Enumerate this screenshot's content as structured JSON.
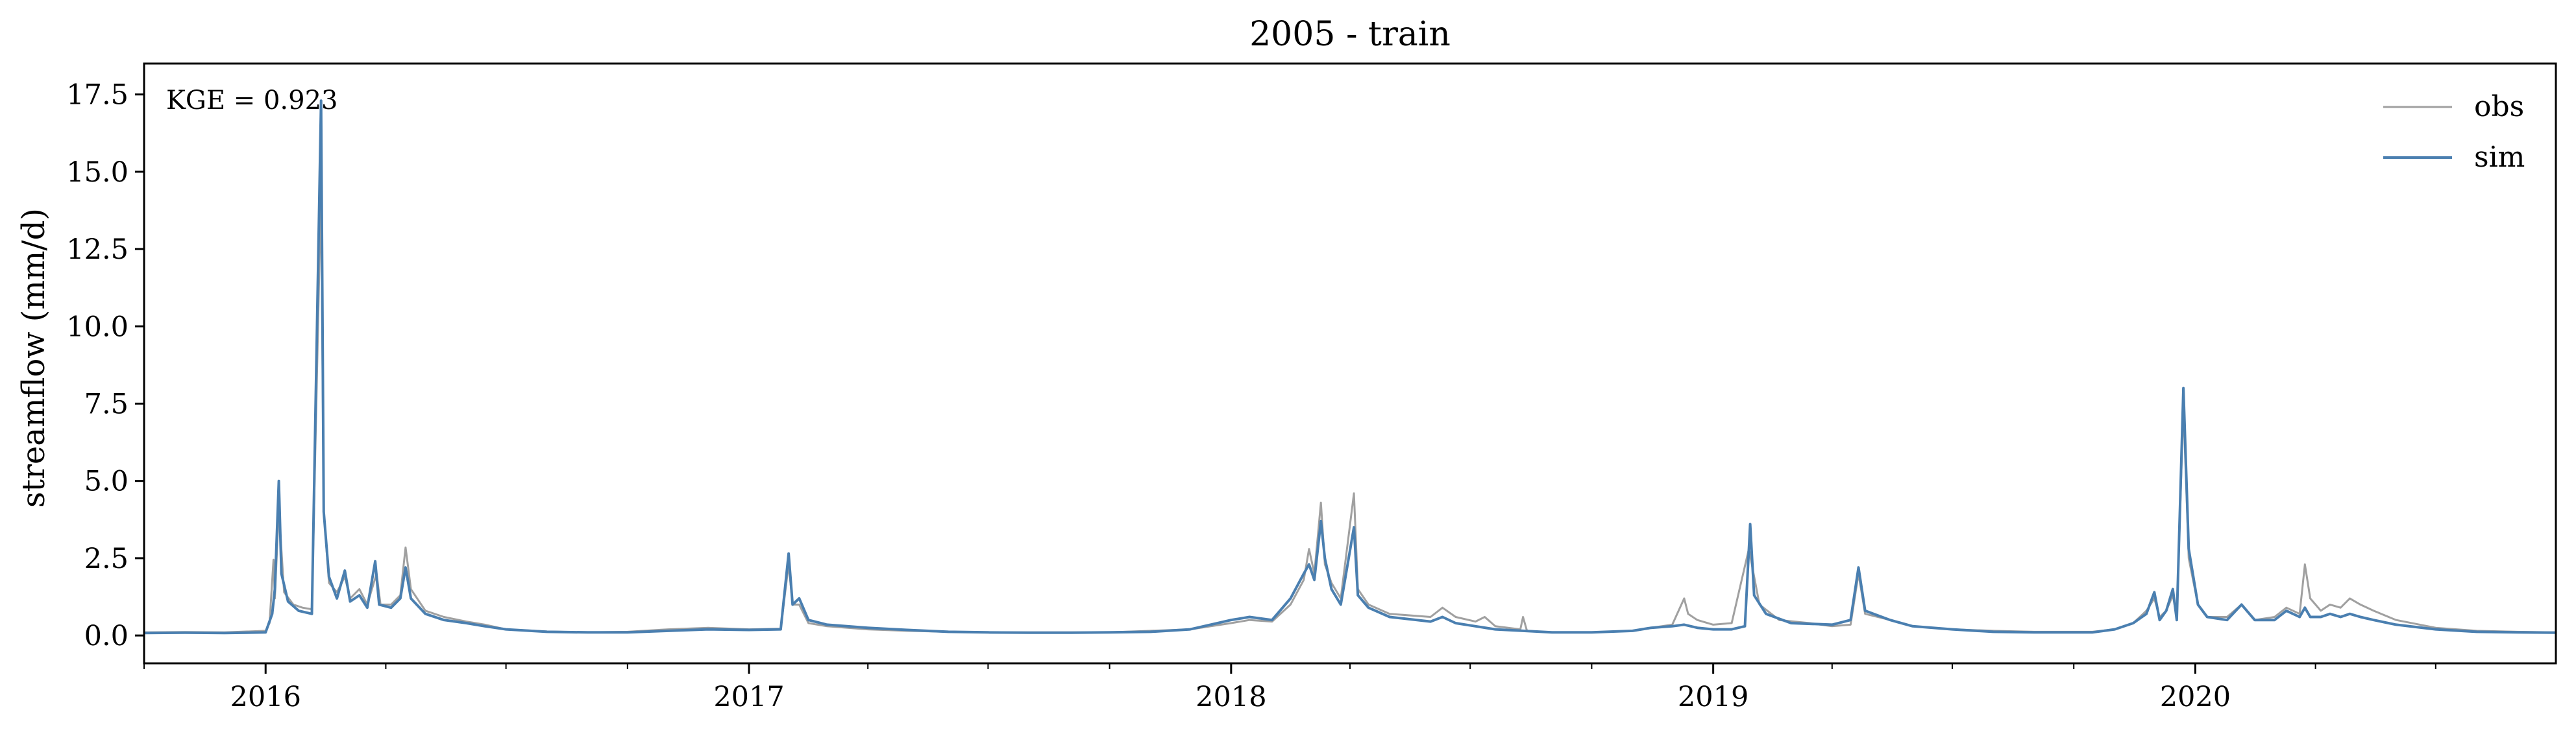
{
  "chart_data": {
    "type": "line",
    "title": "2005 - train",
    "ylabel": "streamflow (mm/d)",
    "xlabel": "",
    "xlim": [
      "2015-10-01",
      "2020-09-30"
    ],
    "ylim": [
      -0.9,
      18.5
    ],
    "yticks": [
      "0.0",
      "2.5",
      "5.0",
      "7.5",
      "10.0",
      "12.5",
      "15.0",
      "17.5"
    ],
    "xticks": [
      "2016",
      "2017",
      "2018",
      "2019",
      "2020"
    ],
    "grid": false,
    "legend": "top-right",
    "annotation": "KGE = 0.923",
    "series": [
      {
        "name": "obs",
        "color": "#a0a0a0",
        "points": [
          [
            "2015-10-01",
            0.1
          ],
          [
            "2015-11-01",
            0.11
          ],
          [
            "2015-12-01",
            0.1
          ],
          [
            "2016-01-01",
            0.15
          ],
          [
            "2016-01-04",
            0.4
          ],
          [
            "2016-01-07",
            2.45
          ],
          [
            "2016-01-08",
            1.2
          ],
          [
            "2016-01-11",
            4.1
          ],
          [
            "2016-01-15",
            1.4
          ],
          [
            "2016-01-22",
            1.0
          ],
          [
            "2016-01-29",
            0.9
          ],
          [
            "2016-02-05",
            0.85
          ],
          [
            "2016-02-12",
            14.5
          ],
          [
            "2016-02-14",
            4.0
          ],
          [
            "2016-02-18",
            1.7
          ],
          [
            "2016-02-24",
            1.4
          ],
          [
            "2016-03-01",
            1.9
          ],
          [
            "2016-03-05",
            1.2
          ],
          [
            "2016-03-12",
            1.5
          ],
          [
            "2016-03-18",
            1.0
          ],
          [
            "2016-03-25",
            2.0
          ],
          [
            "2016-03-28",
            1.0
          ],
          [
            "2016-04-05",
            1.0
          ],
          [
            "2016-04-12",
            1.3
          ],
          [
            "2016-04-16",
            2.85
          ],
          [
            "2016-04-20",
            1.5
          ],
          [
            "2016-05-01",
            0.8
          ],
          [
            "2016-05-15",
            0.6
          ],
          [
            "2016-06-01",
            0.45
          ],
          [
            "2016-06-15",
            0.35
          ],
          [
            "2016-07-01",
            0.2
          ],
          [
            "2016-08-01",
            0.13
          ],
          [
            "2016-09-01",
            0.1
          ],
          [
            "2016-10-01",
            0.12
          ],
          [
            "2016-11-01",
            0.2
          ],
          [
            "2016-12-01",
            0.25
          ],
          [
            "2017-01-01",
            0.2
          ],
          [
            "2017-01-25",
            0.22
          ],
          [
            "2017-01-31",
            2.3
          ],
          [
            "2017-02-03",
            1.0
          ],
          [
            "2017-02-08",
            1.0
          ],
          [
            "2017-02-15",
            0.4
          ],
          [
            "2017-03-01",
            0.3
          ],
          [
            "2017-04-01",
            0.2
          ],
          [
            "2017-05-01",
            0.15
          ],
          [
            "2017-06-01",
            0.12
          ],
          [
            "2017-07-01",
            0.1
          ],
          [
            "2017-08-01",
            0.1
          ],
          [
            "2017-09-01",
            0.1
          ],
          [
            "2017-10-01",
            0.1
          ],
          [
            "2017-11-01",
            0.15
          ],
          [
            "2017-12-01",
            0.2
          ],
          [
            "2018-01-01",
            0.4
          ],
          [
            "2018-01-15",
            0.5
          ],
          [
            "2018-02-01",
            0.45
          ],
          [
            "2018-02-15",
            1.0
          ],
          [
            "2018-02-25",
            1.8
          ],
          [
            "2018-03-01",
            2.8
          ],
          [
            "2018-03-05",
            2.0
          ],
          [
            "2018-03-10",
            4.3
          ],
          [
            "2018-03-13",
            2.3
          ],
          [
            "2018-03-18",
            1.7
          ],
          [
            "2018-03-25",
            1.2
          ],
          [
            "2018-04-04",
            4.6
          ],
          [
            "2018-04-07",
            1.5
          ],
          [
            "2018-04-15",
            1.0
          ],
          [
            "2018-05-01",
            0.7
          ],
          [
            "2018-06-01",
            0.6
          ],
          [
            "2018-06-10",
            0.9
          ],
          [
            "2018-06-20",
            0.6
          ],
          [
            "2018-07-05",
            0.45
          ],
          [
            "2018-07-12",
            0.6
          ],
          [
            "2018-07-20",
            0.3
          ],
          [
            "2018-08-08",
            0.2
          ],
          [
            "2018-08-10",
            0.6
          ],
          [
            "2018-08-13",
            0.15
          ],
          [
            "2018-09-01",
            0.1
          ],
          [
            "2018-10-01",
            0.1
          ],
          [
            "2018-11-01",
            0.15
          ],
          [
            "2018-11-15",
            0.25
          ],
          [
            "2018-12-01",
            0.35
          ],
          [
            "2018-12-10",
            1.2
          ],
          [
            "2018-12-13",
            0.7
          ],
          [
            "2018-12-20",
            0.5
          ],
          [
            "2019-01-01",
            0.35
          ],
          [
            "2019-01-15",
            0.4
          ],
          [
            "2019-01-28",
            2.8
          ],
          [
            "2019-02-05",
            1.0
          ],
          [
            "2019-02-20",
            0.5
          ],
          [
            "2019-03-15",
            0.4
          ],
          [
            "2019-04-01",
            0.3
          ],
          [
            "2019-04-15",
            0.35
          ],
          [
            "2019-04-21",
            2.0
          ],
          [
            "2019-04-26",
            0.7
          ],
          [
            "2019-05-15",
            0.5
          ],
          [
            "2019-06-01",
            0.3
          ],
          [
            "2019-07-01",
            0.2
          ],
          [
            "2019-08-01",
            0.15
          ],
          [
            "2019-09-01",
            0.12
          ],
          [
            "2019-10-01",
            0.12
          ],
          [
            "2019-10-15",
            0.12
          ],
          [
            "2019-11-01",
            0.2
          ],
          [
            "2019-11-15",
            0.4
          ],
          [
            "2019-11-25",
            0.8
          ],
          [
            "2019-12-01",
            1.2
          ],
          [
            "2019-12-05",
            0.6
          ],
          [
            "2019-12-10",
            0.8
          ],
          [
            "2019-12-15",
            1.3
          ],
          [
            "2019-12-18",
            0.6
          ],
          [
            "2019-12-23",
            7.4
          ],
          [
            "2019-12-27",
            2.5
          ],
          [
            "2020-01-03",
            1.0
          ],
          [
            "2020-01-10",
            0.6
          ],
          [
            "2020-01-25",
            0.6
          ],
          [
            "2020-02-05",
            1.0
          ],
          [
            "2020-02-15",
            0.5
          ],
          [
            "2020-03-01",
            0.6
          ],
          [
            "2020-03-10",
            0.9
          ],
          [
            "2020-03-20",
            0.7
          ],
          [
            "2020-03-24",
            2.3
          ],
          [
            "2020-03-28",
            1.2
          ],
          [
            "2020-04-05",
            0.8
          ],
          [
            "2020-04-12",
            1.0
          ],
          [
            "2020-04-20",
            0.9
          ],
          [
            "2020-04-27",
            1.2
          ],
          [
            "2020-05-05",
            1.0
          ],
          [
            "2020-05-15",
            0.8
          ],
          [
            "2020-06-01",
            0.5
          ],
          [
            "2020-07-01",
            0.25
          ],
          [
            "2020-08-01",
            0.15
          ],
          [
            "2020-09-01",
            0.12
          ],
          [
            "2020-09-30",
            0.1
          ]
        ]
      },
      {
        "name": "sim",
        "color": "#4a7fb0",
        "points": [
          [
            "2015-10-01",
            0.08
          ],
          [
            "2015-11-01",
            0.09
          ],
          [
            "2015-12-01",
            0.08
          ],
          [
            "2016-01-01",
            0.1
          ],
          [
            "2016-01-06",
            0.7
          ],
          [
            "2016-01-08",
            1.5
          ],
          [
            "2016-01-11",
            5.0
          ],
          [
            "2016-01-13",
            2.0
          ],
          [
            "2016-01-18",
            1.1
          ],
          [
            "2016-01-26",
            0.8
          ],
          [
            "2016-02-05",
            0.7
          ],
          [
            "2016-02-12",
            17.3
          ],
          [
            "2016-02-14",
            4.0
          ],
          [
            "2016-02-18",
            1.9
          ],
          [
            "2016-02-24",
            1.2
          ],
          [
            "2016-03-01",
            2.1
          ],
          [
            "2016-03-05",
            1.1
          ],
          [
            "2016-03-12",
            1.3
          ],
          [
            "2016-03-18",
            0.9
          ],
          [
            "2016-03-24",
            2.4
          ],
          [
            "2016-03-27",
            1.0
          ],
          [
            "2016-04-05",
            0.9
          ],
          [
            "2016-04-12",
            1.2
          ],
          [
            "2016-04-16",
            2.2
          ],
          [
            "2016-04-20",
            1.2
          ],
          [
            "2016-05-01",
            0.7
          ],
          [
            "2016-05-15",
            0.5
          ],
          [
            "2016-06-01",
            0.4
          ],
          [
            "2016-06-15",
            0.3
          ],
          [
            "2016-07-01",
            0.2
          ],
          [
            "2016-08-01",
            0.12
          ],
          [
            "2016-09-01",
            0.1
          ],
          [
            "2016-10-01",
            0.1
          ],
          [
            "2016-11-01",
            0.15
          ],
          [
            "2016-12-01",
            0.2
          ],
          [
            "2017-01-01",
            0.18
          ],
          [
            "2017-01-25",
            0.2
          ],
          [
            "2017-01-31",
            2.65
          ],
          [
            "2017-02-03",
            1.0
          ],
          [
            "2017-02-08",
            1.2
          ],
          [
            "2017-02-15",
            0.5
          ],
          [
            "2017-03-01",
            0.35
          ],
          [
            "2017-04-01",
            0.25
          ],
          [
            "2017-05-01",
            0.18
          ],
          [
            "2017-06-01",
            0.12
          ],
          [
            "2017-07-01",
            0.1
          ],
          [
            "2017-08-01",
            0.09
          ],
          [
            "2017-09-01",
            0.09
          ],
          [
            "2017-10-01",
            0.1
          ],
          [
            "2017-11-01",
            0.12
          ],
          [
            "2017-12-01",
            0.2
          ],
          [
            "2018-01-01",
            0.5
          ],
          [
            "2018-01-15",
            0.6
          ],
          [
            "2018-02-01",
            0.5
          ],
          [
            "2018-02-15",
            1.2
          ],
          [
            "2018-02-25",
            2.0
          ],
          [
            "2018-03-01",
            2.3
          ],
          [
            "2018-03-05",
            1.8
          ],
          [
            "2018-03-10",
            3.7
          ],
          [
            "2018-03-13",
            2.5
          ],
          [
            "2018-03-18",
            1.5
          ],
          [
            "2018-03-25",
            1.0
          ],
          [
            "2018-04-04",
            3.5
          ],
          [
            "2018-04-07",
            1.3
          ],
          [
            "2018-04-15",
            0.9
          ],
          [
            "2018-05-01",
            0.6
          ],
          [
            "2018-06-01",
            0.45
          ],
          [
            "2018-06-10",
            0.6
          ],
          [
            "2018-06-20",
            0.4
          ],
          [
            "2018-07-05",
            0.3
          ],
          [
            "2018-07-20",
            0.2
          ],
          [
            "2018-08-10",
            0.15
          ],
          [
            "2018-09-01",
            0.1
          ],
          [
            "2018-10-01",
            0.1
          ],
          [
            "2018-11-01",
            0.15
          ],
          [
            "2018-11-15",
            0.25
          ],
          [
            "2018-12-01",
            0.3
          ],
          [
            "2018-12-10",
            0.35
          ],
          [
            "2018-12-20",
            0.25
          ],
          [
            "2019-01-01",
            0.2
          ],
          [
            "2019-01-15",
            0.2
          ],
          [
            "2019-01-25",
            0.3
          ],
          [
            "2019-01-29",
            3.6
          ],
          [
            "2019-02-01",
            1.3
          ],
          [
            "2019-02-10",
            0.7
          ],
          [
            "2019-03-01",
            0.4
          ],
          [
            "2019-04-01",
            0.35
          ],
          [
            "2019-04-15",
            0.5
          ],
          [
            "2019-04-21",
            2.2
          ],
          [
            "2019-04-26",
            0.8
          ],
          [
            "2019-05-15",
            0.5
          ],
          [
            "2019-06-01",
            0.3
          ],
          [
            "2019-07-01",
            0.2
          ],
          [
            "2019-08-01",
            0.12
          ],
          [
            "2019-09-01",
            0.1
          ],
          [
            "2019-10-01",
            0.1
          ],
          [
            "2019-10-15",
            0.1
          ],
          [
            "2019-11-01",
            0.2
          ],
          [
            "2019-11-15",
            0.4
          ],
          [
            "2019-11-25",
            0.7
          ],
          [
            "2019-12-01",
            1.4
          ],
          [
            "2019-12-05",
            0.5
          ],
          [
            "2019-12-10",
            0.8
          ],
          [
            "2019-12-15",
            1.5
          ],
          [
            "2019-12-18",
            0.5
          ],
          [
            "2019-12-23",
            8.0
          ],
          [
            "2019-12-27",
            2.8
          ],
          [
            "2020-01-03",
            1.0
          ],
          [
            "2020-01-10",
            0.6
          ],
          [
            "2020-01-25",
            0.5
          ],
          [
            "2020-02-05",
            1.0
          ],
          [
            "2020-02-15",
            0.5
          ],
          [
            "2020-03-01",
            0.5
          ],
          [
            "2020-03-10",
            0.8
          ],
          [
            "2020-03-20",
            0.6
          ],
          [
            "2020-03-24",
            0.9
          ],
          [
            "2020-03-28",
            0.6
          ],
          [
            "2020-04-05",
            0.6
          ],
          [
            "2020-04-12",
            0.7
          ],
          [
            "2020-04-20",
            0.6
          ],
          [
            "2020-04-27",
            0.7
          ],
          [
            "2020-05-05",
            0.6
          ],
          [
            "2020-05-15",
            0.5
          ],
          [
            "2020-06-01",
            0.35
          ],
          [
            "2020-07-01",
            0.2
          ],
          [
            "2020-08-01",
            0.12
          ],
          [
            "2020-09-01",
            0.1
          ],
          [
            "2020-09-30",
            0.09
          ]
        ]
      }
    ]
  }
}
